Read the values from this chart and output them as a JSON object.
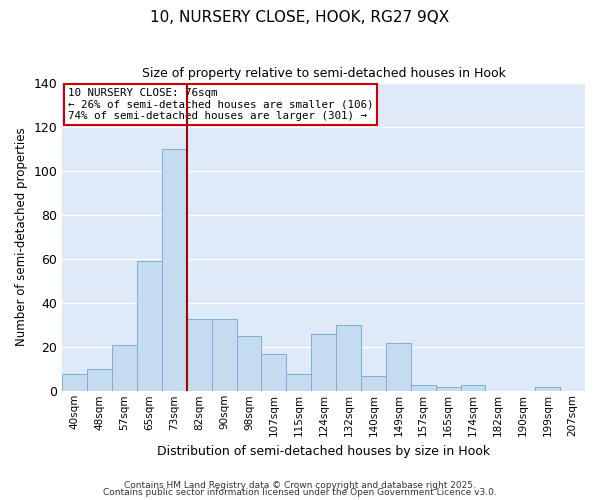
{
  "title": "10, NURSERY CLOSE, HOOK, RG27 9QX",
  "subtitle": "Size of property relative to semi-detached houses in Hook",
  "xlabel": "Distribution of semi-detached houses by size in Hook",
  "ylabel": "Number of semi-detached properties",
  "bar_labels": [
    "40sqm",
    "48sqm",
    "57sqm",
    "65sqm",
    "73sqm",
    "82sqm",
    "90sqm",
    "98sqm",
    "107sqm",
    "115sqm",
    "124sqm",
    "132sqm",
    "140sqm",
    "149sqm",
    "157sqm",
    "165sqm",
    "174sqm",
    "182sqm",
    "190sqm",
    "199sqm",
    "207sqm"
  ],
  "bar_values": [
    8,
    10,
    21,
    59,
    110,
    33,
    33,
    25,
    17,
    8,
    26,
    30,
    7,
    22,
    3,
    2,
    3,
    0,
    0,
    2,
    0
  ],
  "bar_color": "#c5dcf0",
  "bar_edge_color": "#7aafd4",
  "fig_background_color": "#ffffff",
  "ax_background_color": "#deeaf7",
  "grid_color": "#ffffff",
  "ylim": [
    0,
    140
  ],
  "yticks": [
    0,
    20,
    40,
    60,
    80,
    100,
    120,
    140
  ],
  "property_line_color": "#aa0000",
  "annotation_title": "10 NURSERY CLOSE: 76sqm",
  "annotation_line1": "← 26% of semi-detached houses are smaller (106)",
  "annotation_line2": "74% of semi-detached houses are larger (301) →",
  "annotation_box_facecolor": "#ffffff",
  "annotation_box_edgecolor": "#cc0000",
  "footnote1": "Contains HM Land Registry data © Crown copyright and database right 2025.",
  "footnote2": "Contains public sector information licensed under the Open Government Licence v3.0."
}
